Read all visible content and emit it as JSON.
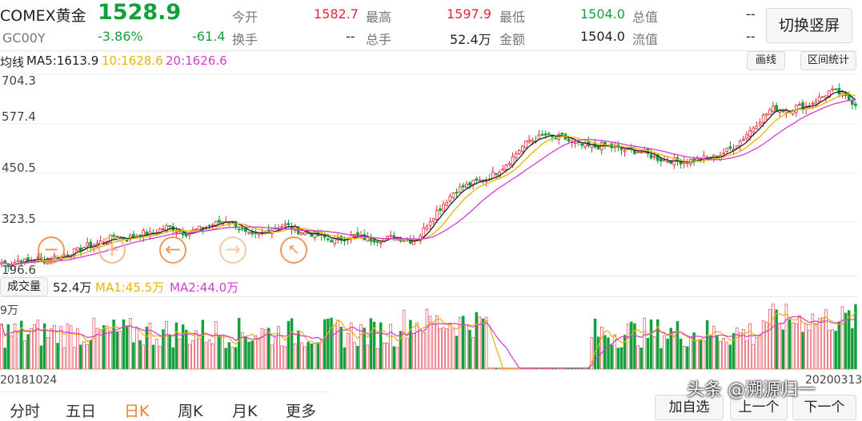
{
  "quote": {
    "name": "COMEX黄金",
    "price": "1528.9",
    "code": "GC00Y",
    "change_pct": "-3.86%",
    "change": "-61.4",
    "cells": [
      {
        "label": "今开",
        "value": "1582.7"
      },
      {
        "label": "最高",
        "value": "1597.9"
      },
      {
        "label": "最低",
        "value": "1504.0"
      },
      {
        "label": "总值",
        "value": "--"
      },
      {
        "label": "换手",
        "value": "--"
      },
      {
        "label": "总手",
        "value": "52.4万"
      },
      {
        "label": "金额",
        "value": "1504.0"
      },
      {
        "label": "流值",
        "value": "--"
      }
    ],
    "switch_button": "切换竖屏"
  },
  "ma_bar": {
    "label": "均线",
    "ma5": "MA5:1613.9",
    "ma10": "10:1628.6",
    "ma20": "20:1626.6",
    "draw_button": "画线",
    "interval_button": "区间统计"
  },
  "price_axis": [
    "704.3",
    "577.4",
    "450.5",
    "323.5",
    "196.6"
  ],
  "volume_bar": {
    "label": "成交量",
    "vol": "52.4万",
    "ma1": "MA1:45.5万",
    "ma2": "MA2:44.0万",
    "axis_max": "9万"
  },
  "dates": {
    "start": "20181024",
    "end": "20200313"
  },
  "tabs": [
    "分时",
    "五日",
    "日K",
    "周K",
    "月K",
    "更多"
  ],
  "bottom_buttons": {
    "watchlist": "加自选",
    "prev": "上一个",
    "next": "下一个"
  },
  "watermark": "头条 @溯源归一",
  "colors": {
    "up": "#e0283a",
    "down": "#13a03a",
    "ma5": "#222222",
    "ma10": "#e8b400",
    "ma20": "#d63ad1",
    "accent": "#f07d1a"
  },
  "chart_data": {
    "type": "candlestick",
    "ylim": [
      196.6,
      704.3
    ],
    "series_close": [
      220,
      214,
      226,
      222,
      232,
      224,
      236,
      232,
      246,
      250,
      262,
      266,
      274,
      283,
      286,
      282,
      289,
      296,
      292,
      306,
      312,
      302,
      295,
      302,
      309,
      316,
      324,
      330,
      316,
      296,
      286,
      294,
      304,
      312,
      316,
      306,
      297,
      294,
      288,
      280,
      276,
      284,
      290,
      284,
      280,
      279,
      282,
      286,
      280,
      276,
      290,
      325,
      352,
      376,
      402,
      414,
      422,
      430,
      436,
      452,
      468,
      490,
      514,
      534,
      540,
      548,
      538,
      544,
      528,
      522,
      518,
      518,
      522,
      516,
      510,
      508,
      507,
      500,
      490,
      484,
      482,
      480,
      482,
      486,
      488,
      490,
      500,
      512,
      528,
      550,
      574,
      596,
      616,
      614,
      612,
      622,
      620,
      634,
      646,
      662,
      656,
      642,
      628
    ],
    "ma_legend": [
      "MA5:1613.9",
      "10:1628.6",
      "20:1626.6"
    ]
  }
}
